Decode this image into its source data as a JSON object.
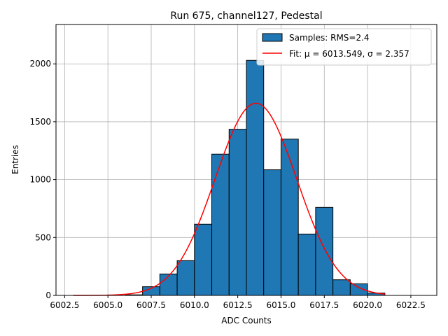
{
  "chart_data": {
    "type": "bar",
    "title": "Run 675, channel127, Pedestal",
    "xlabel": "ADC Counts",
    "ylabel": "Entries",
    "xlim": [
      6002.0,
      6024.0
    ],
    "ylim": [
      0,
      2340
    ],
    "x_ticks": [
      6002.5,
      6005.0,
      6007.5,
      6010.0,
      6012.5,
      6015.0,
      6017.5,
      6020.0,
      6022.5
    ],
    "x_tick_labels": [
      "6002.5",
      "6005.0",
      "6007.5",
      "6010.0",
      "6012.5",
      "6015.0",
      "6017.5",
      "6020.0",
      "6022.5"
    ],
    "y_ticks": [
      0,
      500,
      1000,
      1500,
      2000
    ],
    "y_tick_labels": [
      "0",
      "500",
      "1000",
      "1500",
      "2000"
    ],
    "grid": true,
    "legend_position": "top-right",
    "bins": {
      "edges": [
        6006,
        6007,
        6008,
        6009,
        6010,
        6011,
        6012,
        6013,
        6014,
        6015,
        6016,
        6017,
        6018,
        6019,
        6020,
        6021
      ],
      "counts": [
        5,
        75,
        185,
        300,
        615,
        1220,
        1435,
        2030,
        1085,
        1350,
        530,
        760,
        135,
        100,
        20
      ]
    },
    "fit": {
      "mu": 6013.549,
      "sigma": 2.357,
      "amplitude": 1660,
      "x_range": [
        6003,
        6021
      ]
    },
    "series": [
      {
        "name": "Samples: RMS=2.4",
        "kind": "histogram",
        "color": "#1f77b4"
      },
      {
        "name": "Fit: μ = 6013.549, σ = 2.357",
        "kind": "line",
        "color": "#ff0000"
      }
    ]
  }
}
